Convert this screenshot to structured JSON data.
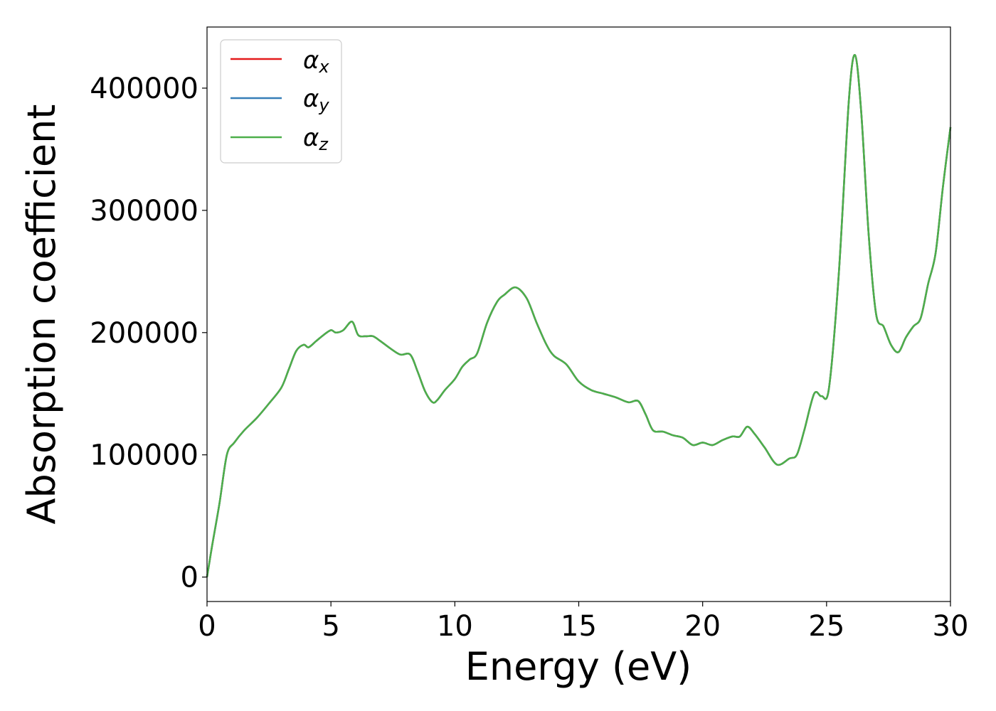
{
  "chart_data": {
    "type": "line",
    "title": "",
    "xlabel": "Energy (eV)",
    "ylabel": "Absorption coefficient",
    "xlim": [
      0,
      30
    ],
    "ylim": [
      -20000,
      450000
    ],
    "xticks": [
      0,
      5,
      10,
      15,
      20,
      25,
      30
    ],
    "xtick_labels": [
      "0",
      "5",
      "10",
      "15",
      "20",
      "25",
      "30"
    ],
    "yticks": [
      0,
      100000,
      200000,
      300000,
      400000
    ],
    "ytick_labels": [
      "0",
      "100000",
      "200000",
      "300000",
      "400000"
    ],
    "grid": false,
    "legend_position": "upper-left",
    "x": [
      0,
      0.2,
      0.5,
      0.8,
      1.1,
      1.5,
      2.0,
      2.5,
      3.0,
      3.3,
      3.6,
      3.9,
      4.1,
      4.4,
      4.7,
      5.0,
      5.2,
      5.5,
      5.85,
      6.1,
      6.4,
      6.7,
      7.0,
      7.4,
      7.8,
      8.2,
      8.5,
      8.8,
      9.1,
      9.3,
      9.6,
      10.0,
      10.3,
      10.6,
      10.9,
      11.3,
      11.7,
      12.0,
      12.45,
      12.9,
      13.3,
      13.7,
      14.0,
      14.5,
      15.0,
      15.5,
      16.0,
      16.5,
      17.0,
      17.4,
      17.7,
      18.0,
      18.4,
      18.8,
      19.2,
      19.6,
      20.0,
      20.4,
      20.8,
      21.2,
      21.5,
      21.8,
      22.1,
      22.5,
      23.0,
      23.5,
      23.8,
      24.1,
      24.5,
      24.8,
      25.1,
      25.5,
      25.9,
      26.15,
      26.4,
      26.7,
      27.0,
      27.3,
      27.6,
      27.9,
      28.2,
      28.5,
      28.8,
      29.1,
      29.4,
      29.7,
      30.0
    ],
    "series": [
      {
        "name": "α_x",
        "color": "#e41a1c",
        "y": [
          0,
          25000,
          60000,
          100000,
          110000,
          120000,
          130000,
          142000,
          155000,
          170000,
          185000,
          190000,
          188000,
          193000,
          198000,
          202000,
          200000,
          202000,
          209000,
          198000,
          197000,
          197000,
          193000,
          187000,
          182000,
          182000,
          168000,
          152000,
          143000,
          145000,
          153000,
          162000,
          172000,
          178000,
          183000,
          208000,
          225000,
          231000,
          237000,
          228000,
          208000,
          190000,
          181000,
          174000,
          160000,
          153000,
          150000,
          147000,
          143000,
          144000,
          133000,
          120000,
          119000,
          116000,
          114000,
          108000,
          110000,
          108000,
          112000,
          115000,
          115000,
          123000,
          117000,
          106000,
          92000,
          97000,
          100000,
          120000,
          150000,
          148000,
          155000,
          250000,
          390000,
          427000,
          380000,
          280000,
          215000,
          205000,
          190000,
          184000,
          196000,
          205000,
          212000,
          240000,
          265000,
          320000,
          368000
        ]
      },
      {
        "name": "α_y",
        "color": "#377eb8",
        "y": [
          0,
          25000,
          60000,
          100000,
          110000,
          120000,
          130000,
          142000,
          155000,
          170000,
          185000,
          190000,
          188000,
          193000,
          198000,
          202000,
          200000,
          202000,
          209000,
          198000,
          197000,
          197000,
          193000,
          187000,
          182000,
          182000,
          168000,
          152000,
          143000,
          145000,
          153000,
          162000,
          172000,
          178000,
          183000,
          208000,
          225000,
          231000,
          237000,
          228000,
          208000,
          190000,
          181000,
          174000,
          160000,
          153000,
          150000,
          147000,
          143000,
          144000,
          133000,
          120000,
          119000,
          116000,
          114000,
          108000,
          110000,
          108000,
          112000,
          115000,
          115000,
          123000,
          117000,
          106000,
          92000,
          97000,
          100000,
          120000,
          150000,
          148000,
          155000,
          250000,
          390000,
          427000,
          380000,
          280000,
          215000,
          205000,
          190000,
          184000,
          196000,
          205000,
          212000,
          240000,
          265000,
          320000,
          368000
        ]
      },
      {
        "name": "α_z",
        "color": "#4daf4a",
        "y": [
          0,
          25000,
          60000,
          100000,
          110000,
          120000,
          130000,
          142000,
          155000,
          170000,
          185000,
          190000,
          188000,
          193000,
          198000,
          202000,
          200000,
          202000,
          209000,
          198000,
          197000,
          197000,
          193000,
          187000,
          182000,
          182000,
          168000,
          152000,
          143000,
          145000,
          153000,
          162000,
          172000,
          178000,
          183000,
          208000,
          225000,
          231000,
          237000,
          228000,
          208000,
          190000,
          181000,
          174000,
          160000,
          153000,
          150000,
          147000,
          143000,
          144000,
          133000,
          120000,
          119000,
          116000,
          114000,
          108000,
          110000,
          108000,
          112000,
          115000,
          115000,
          123000,
          117000,
          106000,
          92000,
          97000,
          100000,
          120000,
          150000,
          148000,
          155000,
          250000,
          390000,
          427000,
          380000,
          280000,
          215000,
          205000,
          190000,
          184000,
          196000,
          205000,
          212000,
          240000,
          265000,
          320000,
          368000
        ]
      }
    ],
    "legend": {
      "entries": [
        {
          "base": "α",
          "sub": "x",
          "color": "#e41a1c"
        },
        {
          "base": "α",
          "sub": "y",
          "color": "#377eb8"
        },
        {
          "base": "α",
          "sub": "z",
          "color": "#4daf4a"
        }
      ]
    }
  }
}
